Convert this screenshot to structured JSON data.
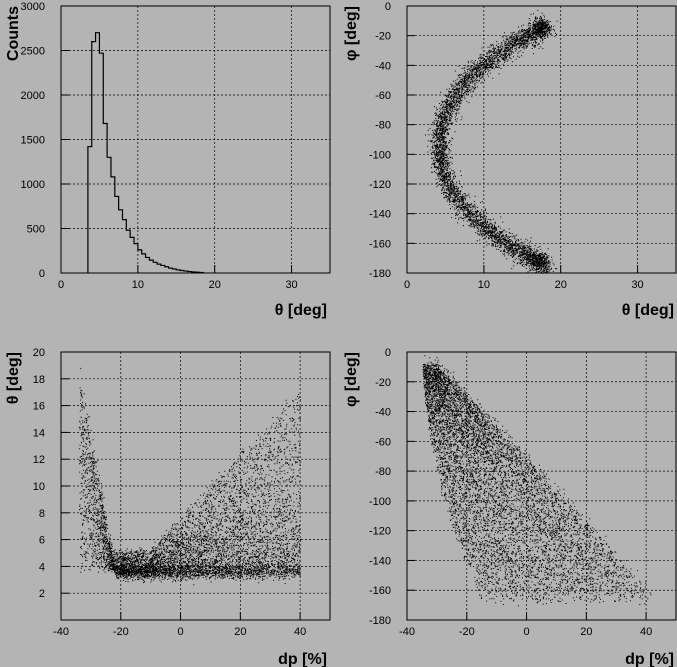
{
  "chart_data": [
    {
      "type": "histogram",
      "xlabel": "θ [deg]",
      "ylabel": "Counts",
      "xlim": [
        0,
        35
      ],
      "ylim": [
        0,
        3000
      ],
      "xticks": [
        "0",
        "10",
        "20",
        "30"
      ],
      "yticks": [
        "0",
        "500",
        "1000",
        "1500",
        "2000",
        "2500",
        "3000"
      ],
      "grid": true,
      "bin_width": 0.5,
      "bin_start": 3.5,
      "values": [
        1420,
        2600,
        2700,
        2470,
        1680,
        1300,
        1080,
        860,
        710,
        600,
        480,
        400,
        330,
        260,
        215,
        175,
        145,
        120,
        100,
        85,
        70,
        55,
        45,
        35,
        28,
        22,
        16,
        12,
        9,
        6
      ]
    },
    {
      "type": "scatter",
      "xlabel": "θ [deg]",
      "ylabel": "φ [deg]",
      "xlim": [
        0,
        35
      ],
      "ylim": [
        -180,
        0
      ],
      "xticks": [
        "0",
        "10",
        "20",
        "30"
      ],
      "yticks": [
        "-180",
        "-160",
        "-140",
        "-120",
        "-100",
        "-80",
        "-60",
        "-40",
        "-20",
        "0"
      ],
      "grid": true,
      "description": "C-shaped band: from (18,-12) curving through (4,-95) to (17,-163)"
    },
    {
      "type": "scatter",
      "xlabel": "dp [%]",
      "ylabel": "θ [deg]",
      "xlim": [
        -40,
        50
      ],
      "ylim": [
        0,
        20
      ],
      "xticks": [
        "-40",
        "-20",
        "0",
        "20",
        "40"
      ],
      "yticks": [
        "2",
        "4",
        "6",
        "8",
        "10",
        "12",
        "14",
        "16",
        "18",
        "20"
      ],
      "grid": true,
      "description": "V-shaped distribution, dense near dp=-20, theta=4"
    },
    {
      "type": "scatter",
      "xlabel": "dp [%]",
      "ylabel": "φ [deg]",
      "xlim": [
        -40,
        50
      ],
      "ylim": [
        -180,
        0
      ],
      "xticks": [
        "-40",
        "-20",
        "0",
        "20",
        "40"
      ],
      "yticks": [
        "-180",
        "-160",
        "-140",
        "-120",
        "-100",
        "-80",
        "-60",
        "-40",
        "-20",
        "0"
      ],
      "grid": true,
      "description": "Diagonal band from (-35,-10) to (40,-163)"
    }
  ]
}
